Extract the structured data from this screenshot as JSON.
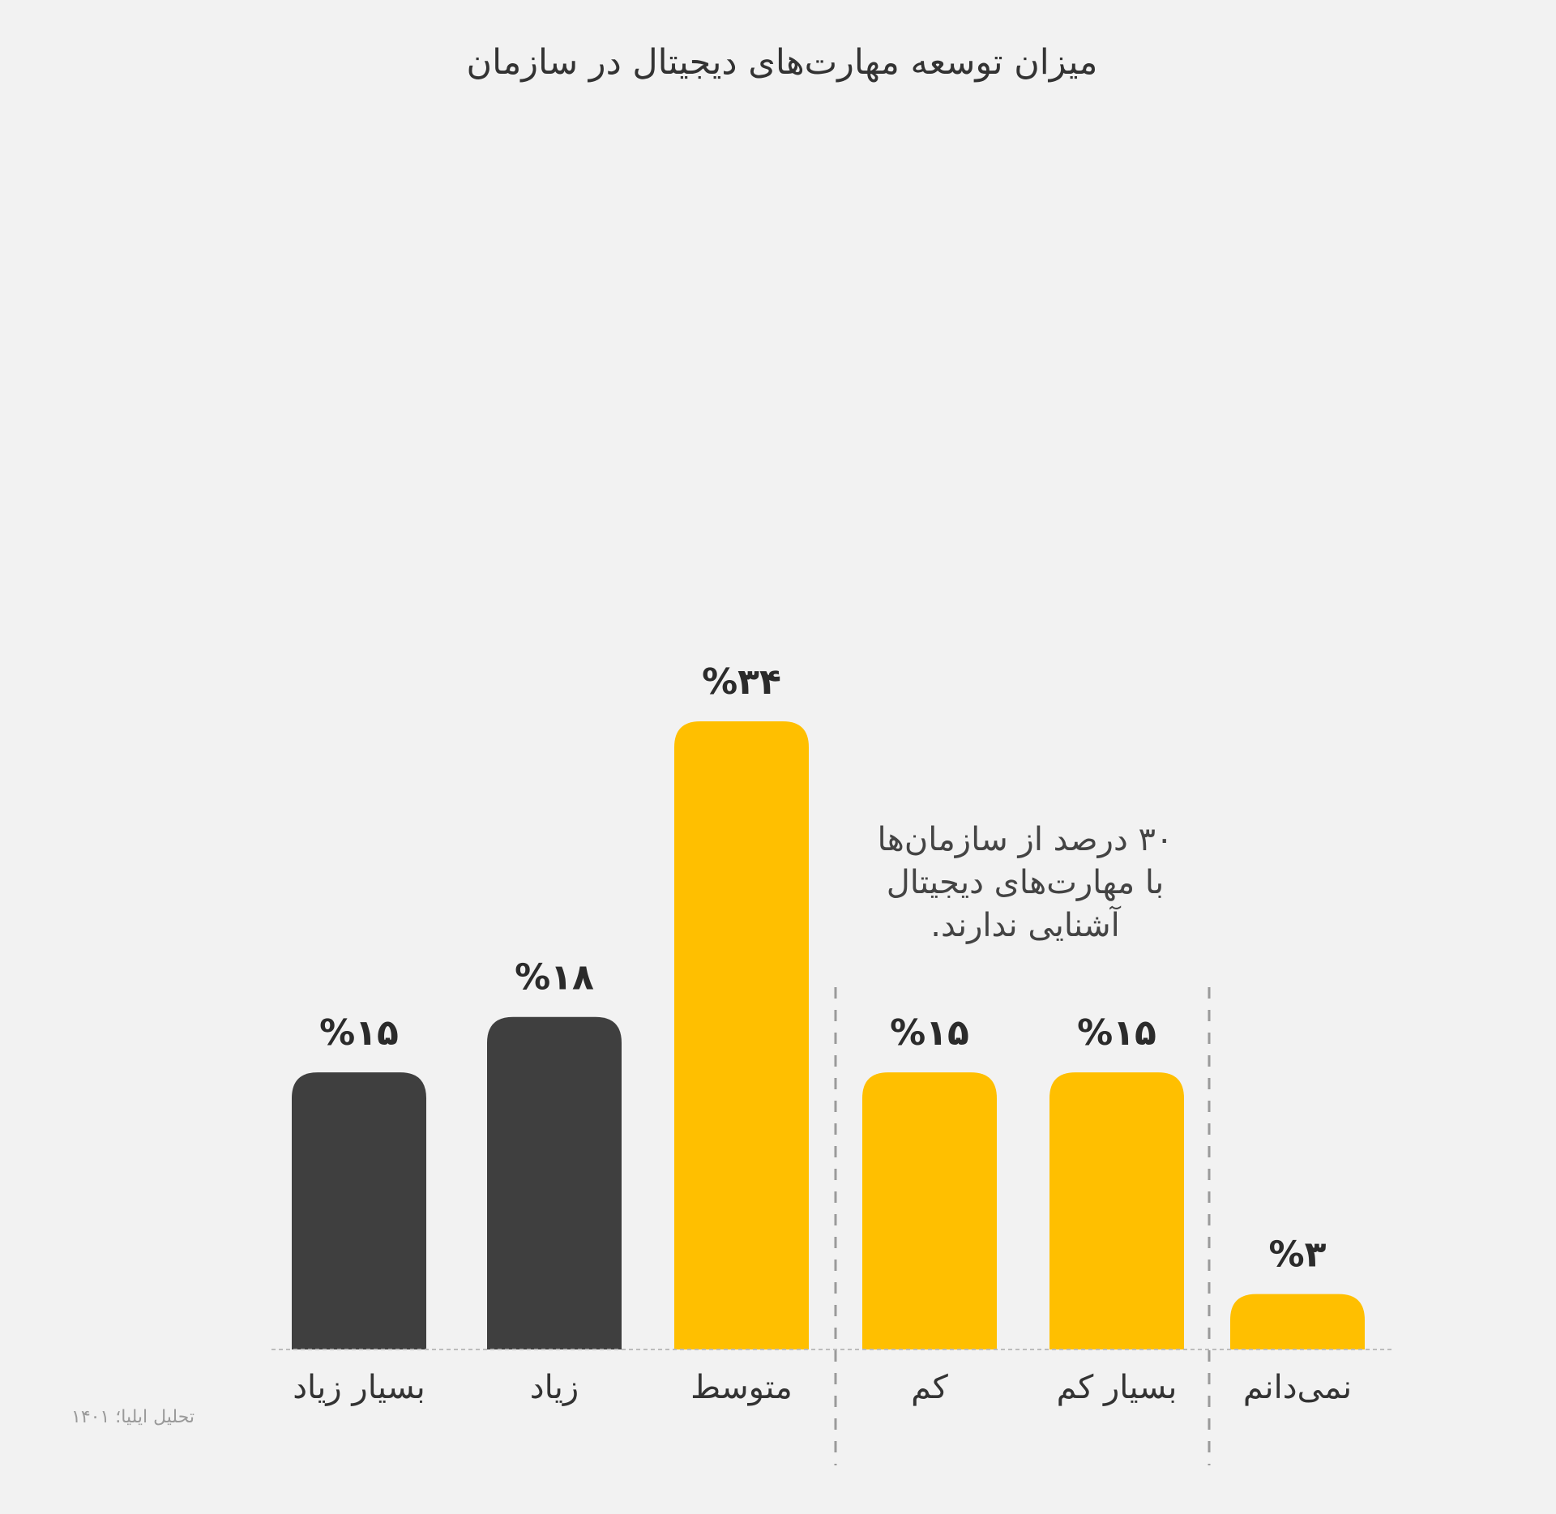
{
  "chart_data": {
    "type": "bar",
    "title": "میزان توسعه مهارت‌های دیجیتال در سازمان",
    "categories": [
      "بسیار زیاد",
      "زیاد",
      "متوسط",
      "کم",
      "بسیار کم",
      "نمی‌دانم"
    ],
    "values": [
      15,
      18,
      34,
      15,
      15,
      3
    ],
    "value_labels": [
      "%۱۵",
      "%۱۸",
      "%۳۴",
      "%۱۵",
      "%۱۵",
      "%۳"
    ],
    "ylim": [
      0,
      34
    ],
    "grid": false,
    "colors": [
      "#3f3f3f",
      "#3f3f3f",
      "#ffbf00",
      "#ffbf00",
      "#ffbf00",
      "#ffbf00"
    ],
    "annotation": [
      "۳۰ درصد از سازمان‌ها",
      "با مهارت‌های دیجیتال",
      "آشنایی ندارند."
    ],
    "source": "تحلیل ایلیا؛ ۱۴۰۱"
  }
}
